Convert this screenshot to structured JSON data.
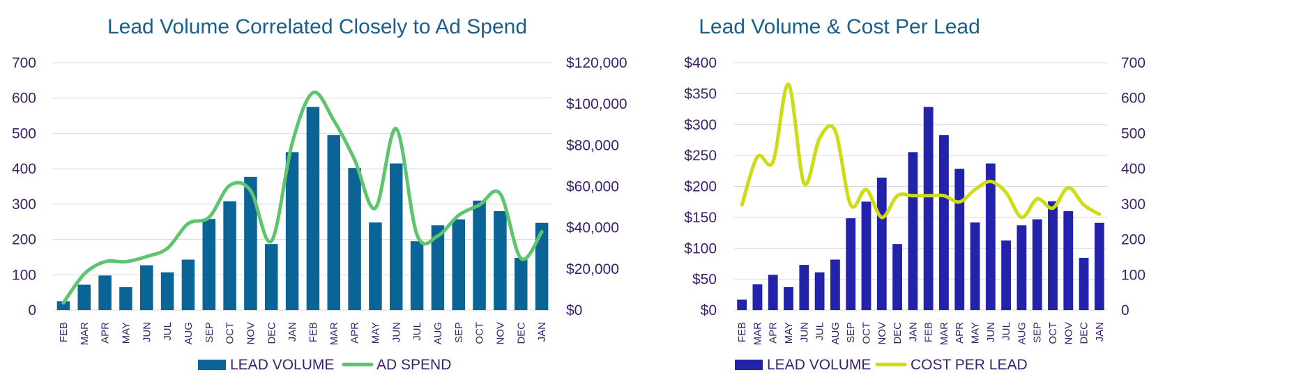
{
  "chart_data": [
    {
      "type": "bar",
      "title": "Lead Volume Correlated Closely to Ad Spend",
      "categories": [
        "FEB",
        "MAR",
        "APR",
        "MAY",
        "JUN",
        "JUL",
        "AUG",
        "SEP",
        "OCT",
        "NOV",
        "DEC",
        "JAN",
        "FEB",
        "MAR",
        "APR",
        "MAY",
        "JUN",
        "JUL",
        "AUG",
        "SEP",
        "OCT",
        "NOV",
        "DEC",
        "JAN"
      ],
      "y_left": {
        "min": 0,
        "max": 700,
        "ticks": [
          "0",
          "100",
          "200",
          "300",
          "400",
          "500",
          "600",
          "700"
        ]
      },
      "y_right": {
        "min": 0,
        "max": 120000,
        "ticks": [
          "$0",
          "$20,000",
          "$40,000",
          "$60,000",
          "$80,000",
          "$100,000",
          "$120,000"
        ]
      },
      "grid": true,
      "legend_position": "bottom",
      "series": [
        {
          "name": "LEAD VOLUME",
          "kind": "bar",
          "axis": "left",
          "color": "#0b6496",
          "values": [
            25,
            72,
            98,
            65,
            127,
            107,
            143,
            258,
            308,
            377,
            187,
            447,
            575,
            495,
            402,
            248,
            415,
            195,
            240,
            257,
            310,
            280,
            148,
            247
          ]
        },
        {
          "name": "AD SPEND",
          "kind": "line",
          "axis": "right",
          "color": "#5ec46e",
          "values": [
            3500,
            17500,
            23500,
            23500,
            26000,
            30000,
            42000,
            45000,
            60500,
            58000,
            33500,
            81000,
            105500,
            92000,
            73000,
            49500,
            88000,
            36500,
            36000,
            46000,
            51000,
            56500,
            25000,
            38000
          ]
        }
      ]
    },
    {
      "type": "bar",
      "title": "Lead Volume & Cost Per Lead",
      "categories": [
        "FEB",
        "MAR",
        "APR",
        "MAY",
        "JUN",
        "JUL",
        "AUG",
        "SEP",
        "OCT",
        "NOV",
        "DEC",
        "JAN",
        "FEB",
        "MAR",
        "APR",
        "MAY",
        "JUN",
        "JUL",
        "AUG",
        "SEP",
        "OCT",
        "NOV",
        "DEC",
        "JAN"
      ],
      "y_left": {
        "min": 0,
        "max": 400,
        "ticks": [
          "$0",
          "$50",
          "$100",
          "$150",
          "$200",
          "$250",
          "$300",
          "$350",
          "$400"
        ]
      },
      "y_right": {
        "min": 0,
        "max": 700,
        "ticks": [
          "0",
          "100",
          "200",
          "300",
          "400",
          "500",
          "600",
          "700"
        ]
      },
      "grid": true,
      "legend_position": "bottom",
      "series": [
        {
          "name": "LEAD VOLUME",
          "kind": "bar",
          "axis": "right",
          "color": "#2222aa",
          "values": [
            30,
            73,
            100,
            65,
            128,
            107,
            143,
            260,
            307,
            375,
            187,
            447,
            575,
            495,
            400,
            248,
            415,
            197,
            240,
            257,
            308,
            280,
            148,
            247
          ]
        },
        {
          "name": "COST PER LEAD",
          "kind": "line",
          "axis": "left",
          "color": "#cddc14",
          "values": [
            170,
            248,
            240,
            365,
            205,
            278,
            290,
            170,
            195,
            150,
            185,
            185,
            185,
            185,
            175,
            195,
            208,
            190,
            150,
            180,
            165,
            198,
            170,
            155
          ]
        }
      ]
    }
  ]
}
